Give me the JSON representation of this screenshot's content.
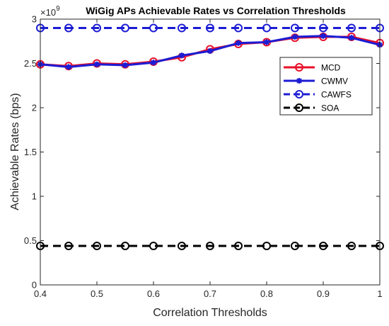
{
  "chart_data": {
    "type": "line",
    "title": "WiGig APs Achievable Rates vs Correlation Thresholds",
    "xlabel": "Correlation Thresholds",
    "ylabel": "Achievable Rates (bps)",
    "y_exponent_base": "×10",
    "y_exponent_power": "9",
    "xlim": [
      0.4,
      1.0
    ],
    "ylim": [
      0,
      3.0
    ],
    "x_ticks": [
      0.4,
      0.5,
      0.6,
      0.7,
      0.8,
      0.9,
      1.0
    ],
    "x_tick_labels": [
      "0.4",
      "0.5",
      "0.6",
      "0.7",
      "0.8",
      "0.9",
      "1"
    ],
    "y_ticks": [
      0,
      0.5,
      1,
      1.5,
      2,
      2.5,
      3
    ],
    "y_tick_labels": [
      "0",
      "0.5",
      "1",
      "1.5",
      "2",
      "2.5",
      "3"
    ],
    "grid": false,
    "legend_position": "top-right",
    "x": [
      0.4,
      0.45,
      0.5,
      0.55,
      0.6,
      0.65,
      0.7,
      0.75,
      0.8,
      0.85,
      0.9,
      0.95,
      1.0
    ],
    "series": [
      {
        "name": "MCD",
        "color": "#e8102a",
        "line_style": "solid",
        "marker": "circle",
        "values": [
          2.49,
          2.47,
          2.5,
          2.49,
          2.52,
          2.57,
          2.66,
          2.72,
          2.74,
          2.79,
          2.8,
          2.8,
          2.73
        ]
      },
      {
        "name": "CWMV",
        "color": "#1c1cd4",
        "line_style": "solid",
        "marker": "asterisk",
        "values": [
          2.49,
          2.46,
          2.49,
          2.48,
          2.51,
          2.59,
          2.64,
          2.73,
          2.74,
          2.8,
          2.81,
          2.79,
          2.71
        ]
      },
      {
        "name": "CAWFS",
        "color": "#1c1cd4",
        "line_style": "dashed",
        "marker": "circle",
        "values": [
          2.9,
          2.9,
          2.9,
          2.9,
          2.9,
          2.9,
          2.9,
          2.9,
          2.9,
          2.9,
          2.9,
          2.9,
          2.9
        ]
      },
      {
        "name": "SOA",
        "color": "#000000",
        "line_style": "dashed",
        "marker": "circle",
        "values": [
          0.44,
          0.44,
          0.44,
          0.44,
          0.44,
          0.44,
          0.44,
          0.44,
          0.44,
          0.44,
          0.44,
          0.44,
          0.44
        ]
      }
    ]
  }
}
